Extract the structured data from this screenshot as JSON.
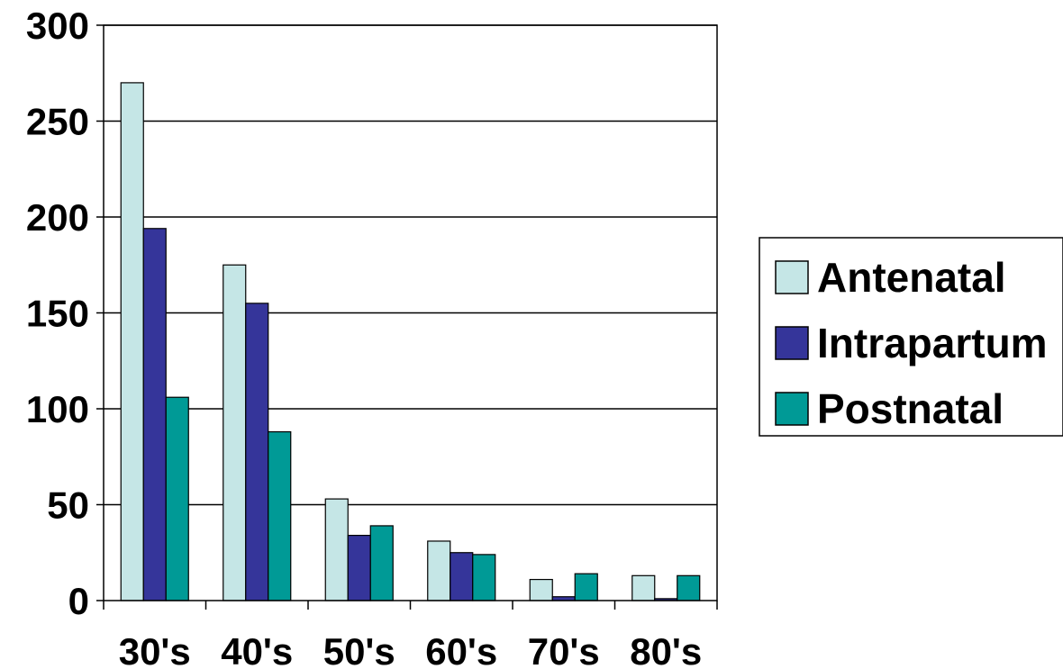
{
  "chart_data": {
    "type": "bar",
    "title": "",
    "xlabel": "",
    "ylabel": "",
    "categories": [
      "30's",
      "40's",
      "50's",
      "60's",
      "70's",
      "80's"
    ],
    "series": [
      {
        "name": "Antenatal",
        "color": "#c5e6e6",
        "values": [
          270,
          175,
          53,
          31,
          11,
          13
        ]
      },
      {
        "name": "Intrapartum",
        "color": "#35359a",
        "values": [
          194,
          155,
          34,
          25,
          2,
          1
        ]
      },
      {
        "name": "Postnatal",
        "color": "#009a96",
        "values": [
          106,
          88,
          39,
          24,
          14,
          13
        ]
      }
    ],
    "ylim": [
      0,
      300
    ],
    "yticks": [
      0,
      50,
      100,
      150,
      200,
      250,
      300
    ],
    "grid": true,
    "legend_position": "right"
  }
}
